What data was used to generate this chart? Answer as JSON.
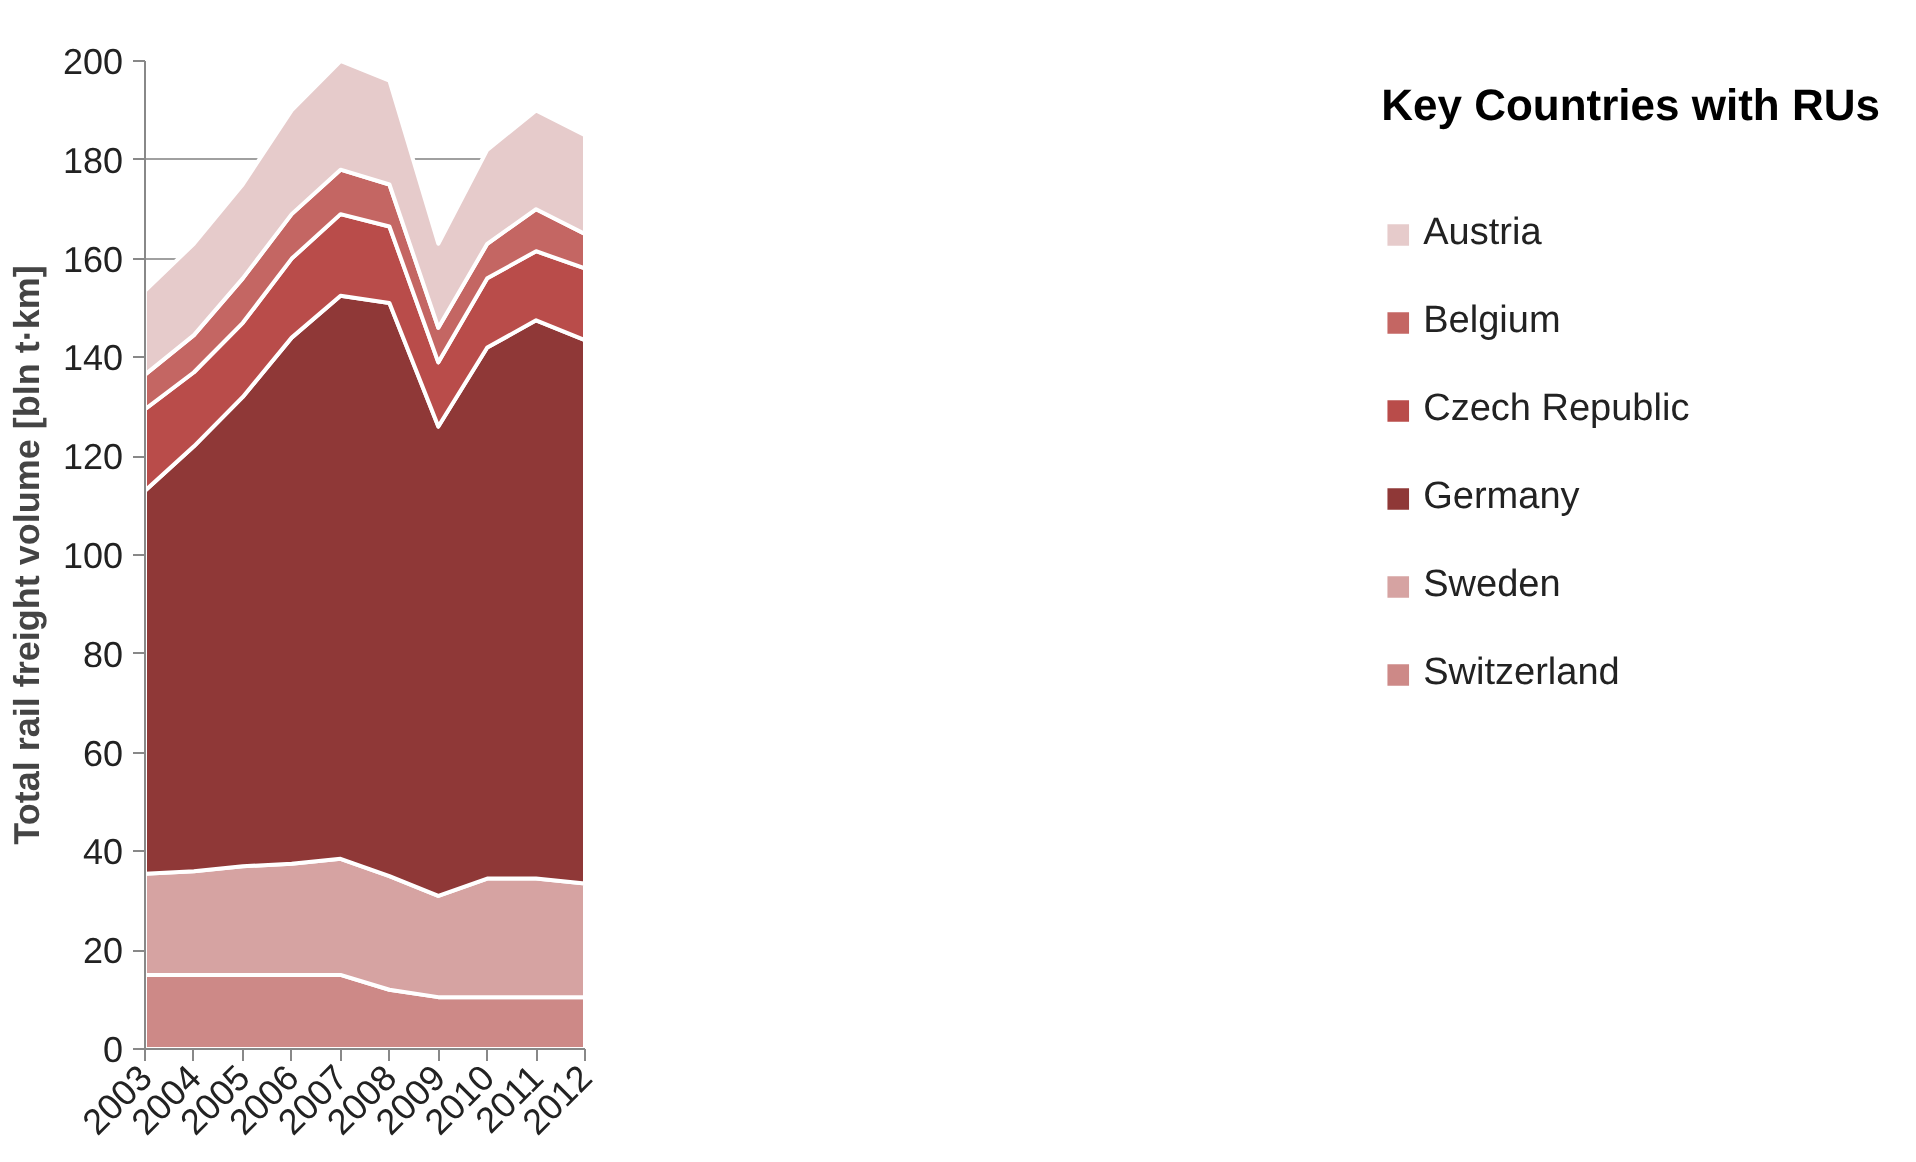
{
  "chart_data": {
    "type": "area",
    "stacked": true,
    "ylabel": "Total rail freight volume [bln t·km]",
    "legend_title": "Key Countries with RUs",
    "x": [
      2003,
      2004,
      2005,
      2006,
      2007,
      2008,
      2009,
      2010,
      2011,
      2012
    ],
    "xlim": [
      2003,
      2012
    ],
    "ylim": [
      0,
      200
    ],
    "yticks": [
      0,
      20,
      40,
      60,
      80,
      100,
      120,
      140,
      160,
      180,
      200
    ],
    "xticks": [
      2003,
      2004,
      2005,
      2006,
      2007,
      2008,
      2009,
      2010,
      2011,
      2012
    ],
    "grid": "y",
    "legend": "right",
    "series": [
      {
        "name": "Switzerland",
        "color": "#cd8987",
        "values": [
          15,
          15,
          15,
          15,
          15,
          12,
          10.5,
          10.5,
          10.5,
          10.5
        ]
      },
      {
        "name": "Sweden",
        "color": "#d6a3a2",
        "values": [
          20.5,
          21,
          22,
          22.5,
          23.5,
          23,
          20.5,
          24,
          24,
          23
        ]
      },
      {
        "name": "Germany",
        "color": "#8f3837",
        "values": [
          77.5,
          86,
          95,
          106.5,
          114,
          116,
          95,
          107.5,
          113,
          110
        ]
      },
      {
        "name": "Czech Republic",
        "color": "#b94c4a",
        "values": [
          16.5,
          15,
          15,
          16,
          16.5,
          15.5,
          13,
          14,
          14,
          14.5
        ]
      },
      {
        "name": "Belgium",
        "color": "#c46663",
        "values": [
          7,
          7.5,
          9,
          9,
          9,
          8.5,
          7,
          7,
          8.5,
          7
        ]
      },
      {
        "name": "Austria",
        "color": "#e6cbcb",
        "values": [
          17,
          18.5,
          19,
          21,
          22,
          21,
          17,
          19,
          20,
          20
        ]
      }
    ]
  }
}
